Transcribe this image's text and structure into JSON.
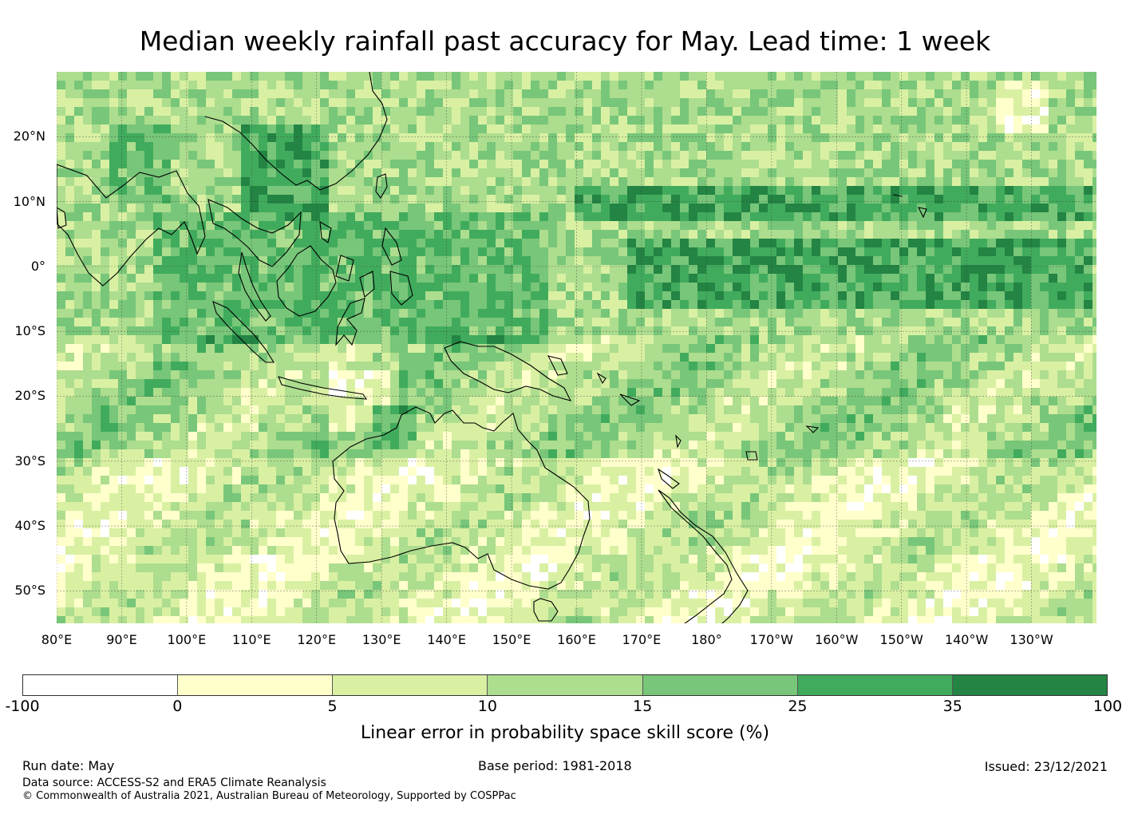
{
  "title": "Median weekly rainfall past accuracy for May. Lead time: 1 week",
  "map": {
    "lat_range": [
      -55,
      30
    ],
    "lon_range": [
      80,
      240
    ],
    "lat_ticks": [
      {
        "value": 20,
        "label": "20°N"
      },
      {
        "value": 10,
        "label": "10°N"
      },
      {
        "value": 0,
        "label": "0°"
      },
      {
        "value": -10,
        "label": "10°S"
      },
      {
        "value": -20,
        "label": "20°S"
      },
      {
        "value": -30,
        "label": "30°S"
      },
      {
        "value": -40,
        "label": "40°S"
      },
      {
        "value": -50,
        "label": "50°S"
      }
    ],
    "lon_ticks": [
      {
        "value": 80,
        "label": "80°E"
      },
      {
        "value": 90,
        "label": "90°E"
      },
      {
        "value": 100,
        "label": "100°E"
      },
      {
        "value": 110,
        "label": "110°E"
      },
      {
        "value": 120,
        "label": "120°E"
      },
      {
        "value": 130,
        "label": "130°E"
      },
      {
        "value": 140,
        "label": "140°E"
      },
      {
        "value": 150,
        "label": "150°E"
      },
      {
        "value": 160,
        "label": "160°E"
      },
      {
        "value": 170,
        "label": "170°E"
      },
      {
        "value": 180,
        "label": "180°"
      },
      {
        "value": 190,
        "label": "170°W"
      },
      {
        "value": 200,
        "label": "160°W"
      },
      {
        "value": 210,
        "label": "150°W"
      },
      {
        "value": 220,
        "label": "140°W"
      },
      {
        "value": 230,
        "label": "130°W"
      }
    ],
    "field_regions": [
      {
        "name": "equatorial-pacific-band",
        "lon": [
          168,
          240
        ],
        "lat": [
          -6,
          4
        ],
        "level": 6
      },
      {
        "name": "itcz-band",
        "lon": [
          160,
          240
        ],
        "lat": [
          7,
          13
        ],
        "level": 6
      },
      {
        "name": "south-china-sea-philippines",
        "lon": [
          108,
          122
        ],
        "lat": [
          7,
          22
        ],
        "level": 6
      },
      {
        "name": "bay-of-bengal",
        "lon": [
          88,
          98
        ],
        "lat": [
          10,
          22
        ],
        "level": 5
      },
      {
        "name": "maritime-continent",
        "lon": [
          95,
          155
        ],
        "lat": [
          -12,
          8
        ],
        "level": 5
      },
      {
        "name": "central-australia-dry",
        "lon": [
          122,
          131
        ],
        "lat": [
          -25,
          -16
        ],
        "level": 0
      },
      {
        "name": "central-australia-green",
        "lon": [
          128,
          135
        ],
        "lat": [
          -28,
          -22
        ],
        "level": 5
      },
      {
        "name": "northeast-pacific-dry",
        "lon": [
          225,
          233
        ],
        "lat": [
          20,
          28
        ],
        "level": 0
      },
      {
        "name": "southern-ocean-mixed",
        "lon": [
          80,
          240
        ],
        "lat": [
          -55,
          -30
        ],
        "level": 2
      }
    ]
  },
  "colorbar": {
    "label": "Linear error in probability space skill score (%)",
    "ticks": [
      "-100",
      "0",
      "5",
      "10",
      "15",
      "25",
      "35",
      "100"
    ],
    "colors": [
      "#ffffff",
      "#ffffcc",
      "#d9f0a3",
      "#addd8e",
      "#78c679",
      "#41ab5d",
      "#238443"
    ]
  },
  "footer": {
    "run_date": "Run date: May",
    "base_period": "Base period: 1981-2018",
    "issued": "Issued: 23/12/2021",
    "data_source": "Data source: ACCESS-S2 and ERA5 Climate Reanalysis",
    "copyright": "© Commonwealth of Australia 2021, Australian Bureau of Meteorology, Supported by COSPPac"
  }
}
